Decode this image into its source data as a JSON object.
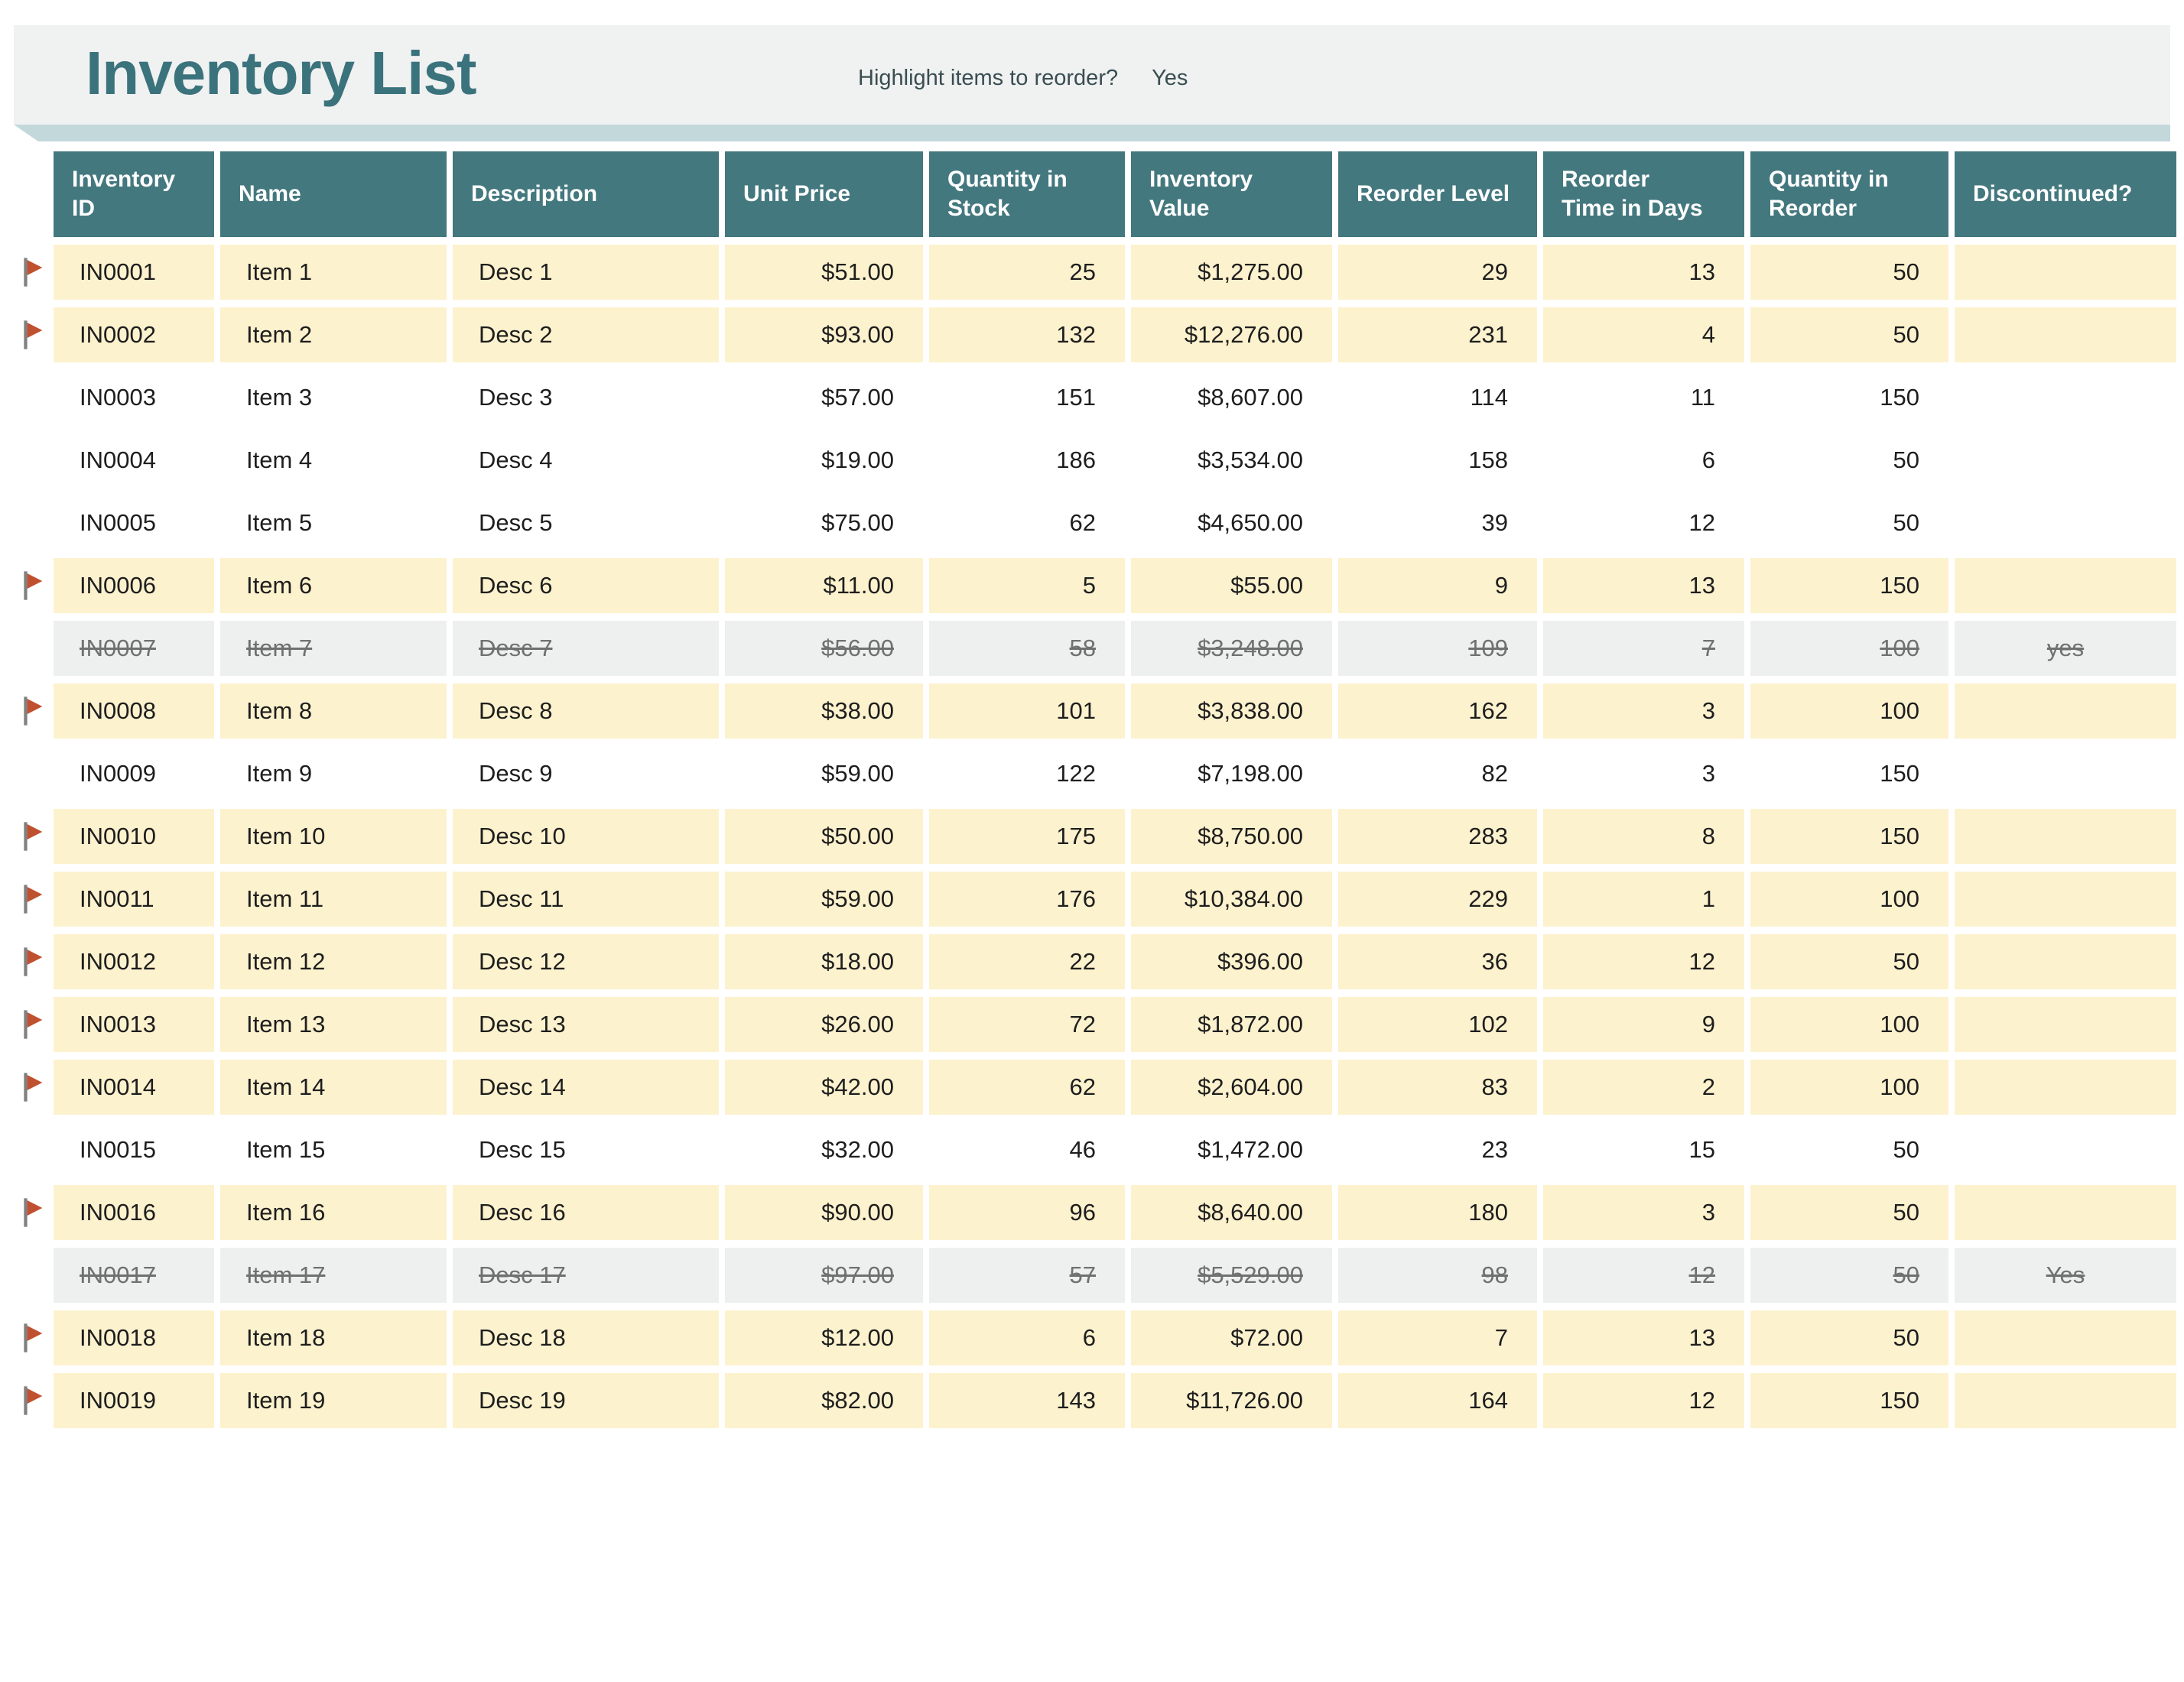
{
  "title": "Inventory List",
  "reorder_prompt": {
    "label": "Highlight items to reorder?",
    "value": "Yes"
  },
  "colors": {
    "header_bg": "#44787F",
    "title_text": "#3B737D",
    "banner_bg": "#F0F1F1",
    "ribbon": "#C3D8DB",
    "reorder_row_bg": "#FDF2CE",
    "discontinued_row_bg": "#EEEFEF",
    "discontinued_text": "#707070",
    "flag": "#C05130"
  },
  "table": {
    "columns": [
      {
        "key": "id",
        "label": "Inventory ID",
        "align": "al"
      },
      {
        "key": "name",
        "label": "Name",
        "align": "al"
      },
      {
        "key": "desc",
        "label": "Description",
        "align": "al"
      },
      {
        "key": "price",
        "label": "Unit Price",
        "align": "ar"
      },
      {
        "key": "qty",
        "label": "Quantity in Stock",
        "align": "ar"
      },
      {
        "key": "value",
        "label": "Inventory Value",
        "align": "ar"
      },
      {
        "key": "rlevel",
        "label": "Reorder Level",
        "align": "ar"
      },
      {
        "key": "rtime",
        "label": "Reorder Time in Days",
        "align": "ar"
      },
      {
        "key": "qreorder",
        "label": "Quantity in Reorder",
        "align": "ar"
      },
      {
        "key": "disc",
        "label": "Discontinued?",
        "align": "ac"
      }
    ],
    "rows": [
      {
        "id": "IN0001",
        "name": "Item 1",
        "desc": "Desc 1",
        "price": "$51.00",
        "qty": "25",
        "value": "$1,275.00",
        "rlevel": "29",
        "rtime": "13",
        "qreorder": "50",
        "disc": "",
        "flagged": true,
        "style": "reorder"
      },
      {
        "id": "IN0002",
        "name": "Item 2",
        "desc": "Desc 2",
        "price": "$93.00",
        "qty": "132",
        "value": "$12,276.00",
        "rlevel": "231",
        "rtime": "4",
        "qreorder": "50",
        "disc": "",
        "flagged": true,
        "style": "reorder"
      },
      {
        "id": "IN0003",
        "name": "Item 3",
        "desc": "Desc 3",
        "price": "$57.00",
        "qty": "151",
        "value": "$8,607.00",
        "rlevel": "114",
        "rtime": "11",
        "qreorder": "150",
        "disc": "",
        "flagged": false,
        "style": "normal"
      },
      {
        "id": "IN0004",
        "name": "Item 4",
        "desc": "Desc 4",
        "price": "$19.00",
        "qty": "186",
        "value": "$3,534.00",
        "rlevel": "158",
        "rtime": "6",
        "qreorder": "50",
        "disc": "",
        "flagged": false,
        "style": "normal"
      },
      {
        "id": "IN0005",
        "name": "Item 5",
        "desc": "Desc 5",
        "price": "$75.00",
        "qty": "62",
        "value": "$4,650.00",
        "rlevel": "39",
        "rtime": "12",
        "qreorder": "50",
        "disc": "",
        "flagged": false,
        "style": "normal"
      },
      {
        "id": "IN0006",
        "name": "Item 6",
        "desc": "Desc 6",
        "price": "$11.00",
        "qty": "5",
        "value": "$55.00",
        "rlevel": "9",
        "rtime": "13",
        "qreorder": "150",
        "disc": "",
        "flagged": true,
        "style": "reorder"
      },
      {
        "id": "IN0007",
        "name": "Item 7",
        "desc": "Desc 7",
        "price": "$56.00",
        "qty": "58",
        "value": "$3,248.00",
        "rlevel": "109",
        "rtime": "7",
        "qreorder": "100",
        "disc": "yes",
        "flagged": false,
        "style": "discontinued"
      },
      {
        "id": "IN0008",
        "name": "Item 8",
        "desc": "Desc 8",
        "price": "$38.00",
        "qty": "101",
        "value": "$3,838.00",
        "rlevel": "162",
        "rtime": "3",
        "qreorder": "100",
        "disc": "",
        "flagged": true,
        "style": "reorder"
      },
      {
        "id": "IN0009",
        "name": "Item 9",
        "desc": "Desc 9",
        "price": "$59.00",
        "qty": "122",
        "value": "$7,198.00",
        "rlevel": "82",
        "rtime": "3",
        "qreorder": "150",
        "disc": "",
        "flagged": false,
        "style": "normal"
      },
      {
        "id": "IN0010",
        "name": "Item 10",
        "desc": "Desc 10",
        "price": "$50.00",
        "qty": "175",
        "value": "$8,750.00",
        "rlevel": "283",
        "rtime": "8",
        "qreorder": "150",
        "disc": "",
        "flagged": true,
        "style": "reorder"
      },
      {
        "id": "IN0011",
        "name": "Item 11",
        "desc": "Desc 11",
        "price": "$59.00",
        "qty": "176",
        "value": "$10,384.00",
        "rlevel": "229",
        "rtime": "1",
        "qreorder": "100",
        "disc": "",
        "flagged": true,
        "style": "reorder"
      },
      {
        "id": "IN0012",
        "name": "Item 12",
        "desc": "Desc 12",
        "price": "$18.00",
        "qty": "22",
        "value": "$396.00",
        "rlevel": "36",
        "rtime": "12",
        "qreorder": "50",
        "disc": "",
        "flagged": true,
        "style": "reorder"
      },
      {
        "id": "IN0013",
        "name": "Item 13",
        "desc": "Desc 13",
        "price": "$26.00",
        "qty": "72",
        "value": "$1,872.00",
        "rlevel": "102",
        "rtime": "9",
        "qreorder": "100",
        "disc": "",
        "flagged": true,
        "style": "reorder"
      },
      {
        "id": "IN0014",
        "name": "Item 14",
        "desc": "Desc 14",
        "price": "$42.00",
        "qty": "62",
        "value": "$2,604.00",
        "rlevel": "83",
        "rtime": "2",
        "qreorder": "100",
        "disc": "",
        "flagged": true,
        "style": "reorder"
      },
      {
        "id": "IN0015",
        "name": "Item 15",
        "desc": "Desc 15",
        "price": "$32.00",
        "qty": "46",
        "value": "$1,472.00",
        "rlevel": "23",
        "rtime": "15",
        "qreorder": "50",
        "disc": "",
        "flagged": false,
        "style": "normal"
      },
      {
        "id": "IN0016",
        "name": "Item 16",
        "desc": "Desc 16",
        "price": "$90.00",
        "qty": "96",
        "value": "$8,640.00",
        "rlevel": "180",
        "rtime": "3",
        "qreorder": "50",
        "disc": "",
        "flagged": true,
        "style": "reorder"
      },
      {
        "id": "IN0017",
        "name": "Item 17",
        "desc": "Desc 17",
        "price": "$97.00",
        "qty": "57",
        "value": "$5,529.00",
        "rlevel": "98",
        "rtime": "12",
        "qreorder": "50",
        "disc": "Yes",
        "flagged": false,
        "style": "discontinued"
      },
      {
        "id": "IN0018",
        "name": "Item 18",
        "desc": "Desc 18",
        "price": "$12.00",
        "qty": "6",
        "value": "$72.00",
        "rlevel": "7",
        "rtime": "13",
        "qreorder": "50",
        "disc": "",
        "flagged": true,
        "style": "reorder"
      },
      {
        "id": "IN0019",
        "name": "Item 19",
        "desc": "Desc 19",
        "price": "$82.00",
        "qty": "143",
        "value": "$11,726.00",
        "rlevel": "164",
        "rtime": "12",
        "qreorder": "150",
        "disc": "",
        "flagged": true,
        "style": "reorder"
      }
    ]
  }
}
